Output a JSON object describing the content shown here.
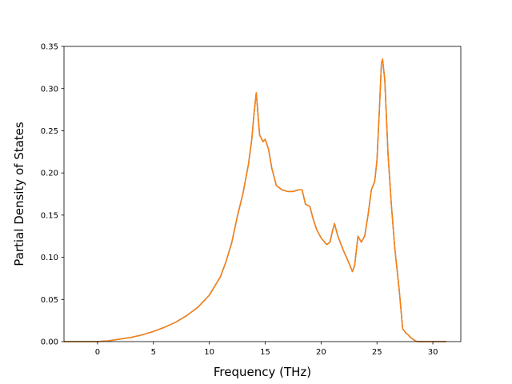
{
  "chart_data": {
    "type": "line",
    "title": "",
    "xlabel": "Frequency (THz)",
    "ylabel": "Partial Density of States",
    "xlim": [
      -3.0,
      32.5
    ],
    "ylim": [
      0.0,
      0.35
    ],
    "x_ticks": [
      0,
      5,
      10,
      15,
      20,
      25,
      30
    ],
    "y_ticks": [
      0.0,
      0.05,
      0.1,
      0.15,
      0.2,
      0.25,
      0.3,
      0.35
    ],
    "x_tick_labels": [
      "0",
      "5",
      "10",
      "15",
      "20",
      "25",
      "30"
    ],
    "y_tick_labels": [
      "0.00",
      "0.05",
      "0.10",
      "0.15",
      "0.20",
      "0.25",
      "0.30",
      "0.35"
    ],
    "grid": false,
    "legend": "none",
    "series": [
      {
        "color": "#1f77b4",
        "x": [
          -3.0,
          0.0,
          1.0,
          2.0,
          3.0,
          4.0,
          5.0,
          6.0,
          7.0,
          8.0,
          9.0,
          10.0,
          11.0,
          11.5,
          12.0,
          12.5,
          13.0,
          13.5,
          13.8,
          14.0,
          14.2,
          14.5,
          14.8,
          15.0,
          15.3,
          15.6,
          16.0,
          16.5,
          17.0,
          17.5,
          18.0,
          18.3,
          18.6,
          19.0,
          19.3,
          19.6,
          20.0,
          20.5,
          20.8,
          21.0,
          21.2,
          21.5,
          22.0,
          22.5,
          22.8,
          23.0,
          23.3,
          23.6,
          23.9,
          24.2,
          24.5,
          24.8,
          25.0,
          25.2,
          25.4,
          25.5,
          25.7,
          26.0,
          26.3,
          26.6,
          27.0,
          27.3,
          27.6,
          27.8,
          28.0,
          28.3,
          28.6,
          29.0,
          30.0,
          31.2
        ],
        "y": [
          0.0,
          0.0,
          0.001,
          0.003,
          0.005,
          0.008,
          0.012,
          0.017,
          0.023,
          0.031,
          0.041,
          0.055,
          0.077,
          0.095,
          0.117,
          0.148,
          0.175,
          0.21,
          0.24,
          0.27,
          0.295,
          0.245,
          0.237,
          0.24,
          0.228,
          0.205,
          0.185,
          0.18,
          0.178,
          0.178,
          0.18,
          0.18,
          0.163,
          0.16,
          0.145,
          0.133,
          0.123,
          0.115,
          0.118,
          0.13,
          0.14,
          0.125,
          0.108,
          0.093,
          0.083,
          0.09,
          0.125,
          0.118,
          0.125,
          0.15,
          0.18,
          0.19,
          0.215,
          0.27,
          0.33,
          0.335,
          0.31,
          0.22,
          0.16,
          0.11,
          0.06,
          0.015,
          0.01,
          0.008,
          0.005,
          0.002,
          0.0,
          0.0,
          0.0,
          0.0
        ]
      },
      {
        "color": "#ff7f0e",
        "x": [
          -3.0,
          0.0,
          1.0,
          2.0,
          3.0,
          4.0,
          5.0,
          6.0,
          7.0,
          8.0,
          9.0,
          10.0,
          11.0,
          11.5,
          12.0,
          12.5,
          13.0,
          13.5,
          13.8,
          14.0,
          14.2,
          14.5,
          14.8,
          15.0,
          15.3,
          15.6,
          16.0,
          16.5,
          17.0,
          17.5,
          18.0,
          18.3,
          18.6,
          19.0,
          19.3,
          19.6,
          20.0,
          20.5,
          20.8,
          21.0,
          21.2,
          21.5,
          22.0,
          22.5,
          22.8,
          23.0,
          23.3,
          23.6,
          23.9,
          24.2,
          24.5,
          24.8,
          25.0,
          25.2,
          25.4,
          25.5,
          25.7,
          26.0,
          26.3,
          26.6,
          27.0,
          27.3,
          27.6,
          27.8,
          28.0,
          28.3,
          28.6,
          29.0,
          30.0,
          31.2
        ],
        "y": [
          0.0,
          0.0,
          0.001,
          0.003,
          0.005,
          0.008,
          0.012,
          0.017,
          0.023,
          0.031,
          0.041,
          0.055,
          0.077,
          0.095,
          0.117,
          0.148,
          0.175,
          0.21,
          0.24,
          0.27,
          0.295,
          0.245,
          0.237,
          0.24,
          0.228,
          0.205,
          0.185,
          0.18,
          0.178,
          0.178,
          0.18,
          0.18,
          0.163,
          0.16,
          0.145,
          0.133,
          0.123,
          0.115,
          0.118,
          0.13,
          0.14,
          0.125,
          0.108,
          0.093,
          0.083,
          0.09,
          0.125,
          0.118,
          0.125,
          0.15,
          0.18,
          0.19,
          0.215,
          0.27,
          0.33,
          0.335,
          0.31,
          0.22,
          0.16,
          0.11,
          0.06,
          0.015,
          0.01,
          0.008,
          0.005,
          0.002,
          0.0,
          0.0,
          0.0,
          0.0
        ]
      }
    ]
  }
}
